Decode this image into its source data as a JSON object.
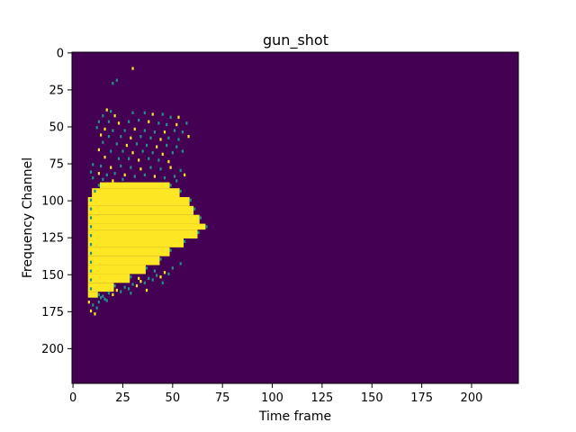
{
  "chart_data": {
    "type": "heatmap",
    "title": "gun_shot",
    "xlabel": "Time frame",
    "ylabel": "Frequency Channel",
    "xlim": [
      -0.5,
      223.5
    ],
    "ylim": [
      223.5,
      -0.5
    ],
    "x_ticks": [
      0,
      25,
      50,
      75,
      100,
      125,
      150,
      175,
      200
    ],
    "y_ticks": [
      0,
      25,
      50,
      75,
      100,
      125,
      150,
      175,
      200
    ],
    "colormap": {
      "low": "#440154",
      "mid": "#21918c",
      "high": "#fde725"
    },
    "grid": false,
    "legend": "none",
    "high_region_rows": [
      {
        "y_range": [
          88,
          92
        ],
        "x_range": [
          14,
          48
        ]
      },
      {
        "y_range": [
          92,
          98
        ],
        "x_range": [
          10,
          53
        ]
      },
      {
        "y_range": [
          98,
          104
        ],
        "x_range": [
          8,
          58
        ]
      },
      {
        "y_range": [
          104,
          110
        ],
        "x_range": [
          8,
          60
        ]
      },
      {
        "y_range": [
          110,
          116
        ],
        "x_range": [
          8,
          63
        ]
      },
      {
        "y_range": [
          116,
          120
        ],
        "x_range": [
          8,
          66
        ]
      },
      {
        "y_range": [
          120,
          126
        ],
        "x_range": [
          8,
          62
        ]
      },
      {
        "y_range": [
          126,
          132
        ],
        "x_range": [
          8,
          55
        ]
      },
      {
        "y_range": [
          132,
          138
        ],
        "x_range": [
          8,
          48
        ]
      },
      {
        "y_range": [
          138,
          144
        ],
        "x_range": [
          8,
          43
        ]
      },
      {
        "y_range": [
          144,
          150
        ],
        "x_range": [
          8,
          36
        ]
      },
      {
        "y_range": [
          150,
          156
        ],
        "x_range": [
          8,
          28
        ]
      },
      {
        "y_range": [
          156,
          162
        ],
        "x_range": [
          8,
          20
        ]
      },
      {
        "y_range": [
          162,
          166
        ],
        "x_range": [
          8,
          12
        ]
      }
    ],
    "sparse_points": [
      [
        30,
        10
      ],
      [
        22,
        18
      ],
      [
        20,
        20
      ],
      [
        17,
        38
      ],
      [
        19,
        39
      ],
      [
        15,
        42
      ],
      [
        21,
        42
      ],
      [
        30,
        40
      ],
      [
        36,
        40
      ],
      [
        40,
        41
      ],
      [
        45,
        41
      ],
      [
        49,
        43
      ],
      [
        53,
        43
      ],
      [
        13,
        46
      ],
      [
        18,
        46
      ],
      [
        23,
        47
      ],
      [
        28,
        46
      ],
      [
        33,
        45
      ],
      [
        38,
        46
      ],
      [
        43,
        47
      ],
      [
        47,
        48
      ],
      [
        52,
        48
      ],
      [
        57,
        47
      ],
      [
        12,
        50
      ],
      [
        16,
        51
      ],
      [
        20,
        52
      ],
      [
        26,
        52
      ],
      [
        31,
        51
      ],
      [
        36,
        52
      ],
      [
        41,
        53
      ],
      [
        46,
        53
      ],
      [
        51,
        52
      ],
      [
        55,
        53
      ],
      [
        14,
        55
      ],
      [
        18,
        56
      ],
      [
        24,
        56
      ],
      [
        29,
        57
      ],
      [
        34,
        56
      ],
      [
        39,
        57
      ],
      [
        44,
        58
      ],
      [
        48,
        57
      ],
      [
        53,
        58
      ],
      [
        58,
        56
      ],
      [
        15,
        60
      ],
      [
        22,
        61
      ],
      [
        27,
        62
      ],
      [
        32,
        61
      ],
      [
        37,
        62
      ],
      [
        42,
        63
      ],
      [
        47,
        62
      ],
      [
        52,
        63
      ],
      [
        13,
        65
      ],
      [
        19,
        66
      ],
      [
        25,
        66
      ],
      [
        30,
        67
      ],
      [
        35,
        66
      ],
      [
        40,
        67
      ],
      [
        45,
        68
      ],
      [
        50,
        67
      ],
      [
        55,
        66
      ],
      [
        16,
        70
      ],
      [
        23,
        71
      ],
      [
        28,
        71
      ],
      [
        33,
        72
      ],
      [
        38,
        71
      ],
      [
        43,
        72
      ],
      [
        48,
        73
      ],
      [
        10,
        75
      ],
      [
        14,
        76
      ],
      [
        19,
        77
      ],
      [
        24,
        76
      ],
      [
        29,
        77
      ],
      [
        34,
        78
      ],
      [
        39,
        77
      ],
      [
        44,
        78
      ],
      [
        49,
        77
      ],
      [
        54,
        79
      ],
      [
        9,
        80
      ],
      [
        13,
        81
      ],
      [
        17,
        82
      ],
      [
        21,
        81
      ],
      [
        26,
        82
      ],
      [
        31,
        83
      ],
      [
        36,
        82
      ],
      [
        41,
        83
      ],
      [
        46,
        84
      ],
      [
        51,
        83
      ],
      [
        56,
        82
      ],
      [
        10,
        84
      ],
      [
        15,
        85
      ],
      [
        20,
        86
      ],
      [
        25,
        85
      ],
      [
        52,
        86
      ],
      [
        8,
        168
      ],
      [
        10,
        170
      ],
      [
        12,
        172
      ],
      [
        9,
        174
      ],
      [
        13,
        168
      ],
      [
        16,
        166
      ],
      [
        11,
        176
      ],
      [
        14,
        165
      ],
      [
        18,
        162
      ],
      [
        22,
        160
      ],
      [
        26,
        158
      ],
      [
        30,
        156
      ],
      [
        34,
        154
      ],
      [
        38,
        152
      ],
      [
        42,
        150
      ],
      [
        46,
        148
      ],
      [
        50,
        145
      ],
      [
        54,
        142
      ],
      [
        20,
        163
      ],
      [
        24,
        161
      ],
      [
        28,
        159
      ],
      [
        32,
        157
      ],
      [
        36,
        155
      ],
      [
        40,
        153
      ],
      [
        44,
        151
      ],
      [
        48,
        149
      ],
      [
        15,
        164
      ],
      [
        33,
        152
      ],
      [
        41,
        147
      ],
      [
        45,
        155
      ],
      [
        37,
        160
      ],
      [
        29,
        162
      ],
      [
        17,
        167
      ]
    ],
    "fringe_points": [
      [
        13,
        89
      ],
      [
        11,
        93
      ],
      [
        9,
        99
      ],
      [
        9,
        105
      ],
      [
        9,
        111
      ],
      [
        9,
        117
      ],
      [
        9,
        123
      ],
      [
        9,
        129
      ],
      [
        9,
        135
      ],
      [
        9,
        141
      ],
      [
        9,
        147
      ],
      [
        9,
        153
      ],
      [
        9,
        159
      ],
      [
        49,
        89
      ],
      [
        54,
        93
      ],
      [
        59,
        99
      ],
      [
        61,
        105
      ],
      [
        64,
        111
      ],
      [
        67,
        117
      ],
      [
        63,
        121
      ],
      [
        56,
        127
      ],
      [
        49,
        133
      ],
      [
        44,
        139
      ],
      [
        37,
        145
      ],
      [
        29,
        151
      ],
      [
        21,
        157
      ],
      [
        13,
        163
      ]
    ]
  }
}
